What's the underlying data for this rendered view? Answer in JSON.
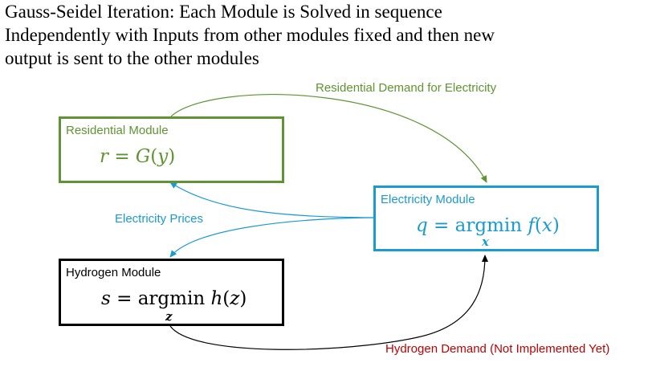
{
  "title_lines": [
    "Gauss-Seidel Iteration: Each Module is Solved in sequence",
    "Independently with Inputs from other modules fixed and then new",
    "output is sent to the other modules"
  ],
  "modules": {
    "residential": {
      "label": "Residential Module",
      "eq_lhs": "r",
      "eq_op": "=",
      "eq_func": "G",
      "eq_arg": "y",
      "color": "#5e9431"
    },
    "electricity": {
      "label": "Electricity Module",
      "eq_lhs": "q",
      "eq_op": "=",
      "eq_argmin": "argmin",
      "eq_func": "f",
      "eq_arg": "x",
      "eq_sub": "x",
      "color": "#1a9bd0"
    },
    "hydrogen": {
      "label": "Hydrogen Module",
      "eq_lhs": "s",
      "eq_op": "=",
      "eq_argmin": "argmin",
      "eq_func": "h",
      "eq_arg": "z",
      "eq_sub": "z",
      "color": "#000000"
    }
  },
  "flows": {
    "residential_demand": {
      "label": "Residential Demand for Electricity",
      "color": "#5e9431"
    },
    "electricity_prices": {
      "label": "Electricity Prices",
      "color": "#1a9bd0"
    },
    "hydrogen_demand": {
      "label": "Hydrogen Demand (Not Implemented Yet)",
      "color": "#c00000"
    }
  }
}
